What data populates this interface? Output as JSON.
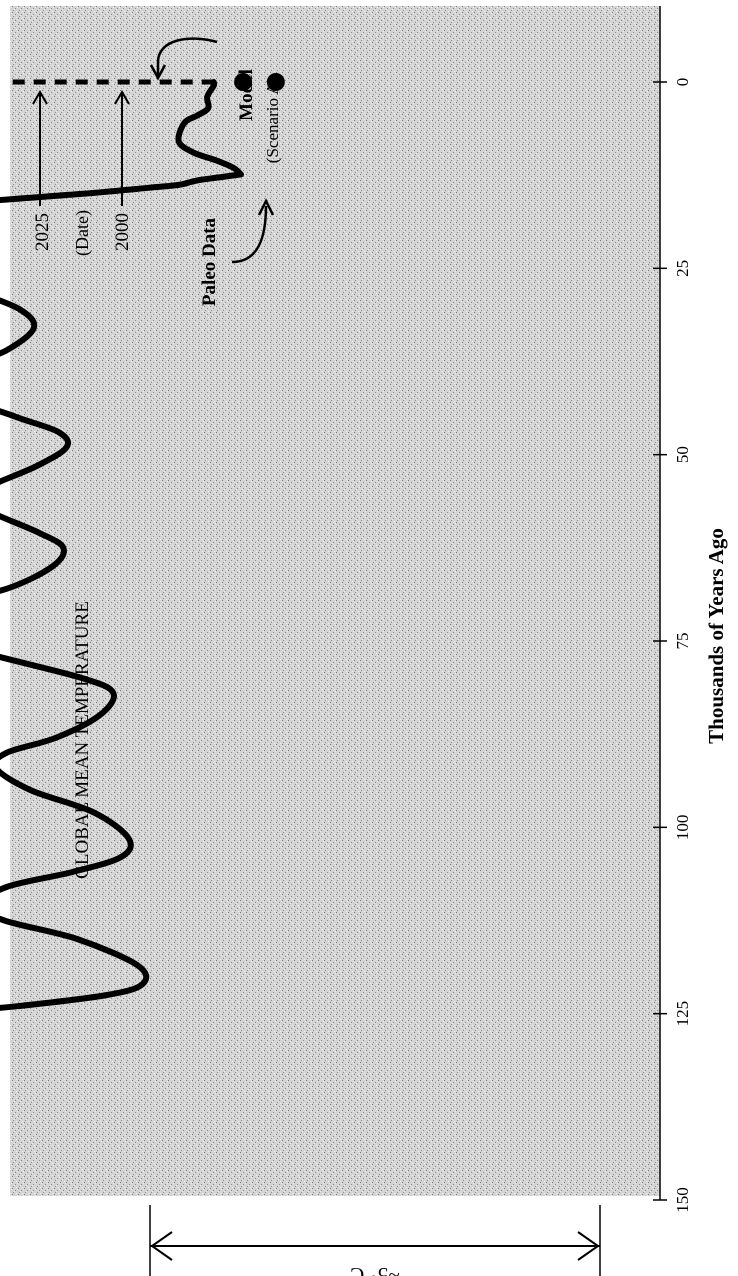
{
  "colors": {
    "background": "#d9d9d9",
    "ink": "#000000",
    "page": "#ffffff"
  },
  "chart_data": {
    "type": "line",
    "title": "GLOBAL MEAN TEMPERATURE",
    "xlabel": "Thousands of Years Ago",
    "ylabel": "",
    "x_ticks": [
      0,
      25,
      50,
      75,
      100,
      125,
      150
    ],
    "x_tick_labels": [
      "0",
      "25",
      "50",
      "75",
      "100",
      "125",
      "150"
    ],
    "xlim": [
      0,
      150
    ],
    "ylim": [
      -4,
      1
    ],
    "x_axis_reversed": true,
    "temperature_scale_label": "~5° C",
    "grid": false,
    "series": [
      {
        "name": "",
        "x": [
          150,
          146,
          142,
          139,
          136,
          132,
          128,
          125.5,
          124,
          122.5,
          121,
          118.5,
          115,
          112.5,
          110.5,
          108,
          106,
          104,
          101.5,
          98,
          95,
          92,
          90,
          88,
          85,
          82,
          80,
          77,
          74.5,
          72,
          70,
          68,
          65,
          62.5,
          60.5,
          58,
          56,
          54,
          51.5,
          49,
          47,
          45,
          42.5,
          40,
          38,
          36,
          33,
          30.5,
          28,
          25,
          22,
          20,
          18,
          17,
          16,
          15,
          14.2,
          13.8,
          13.2,
          12.8,
          12.4
        ],
        "values": [
          -3.68,
          -3.82,
          -3.95,
          -4.0,
          -3.9,
          -3.7,
          -3.4,
          -2.55,
          -1.5,
          -0.68,
          -0.35,
          -0.4,
          -0.95,
          -1.62,
          -1.85,
          -1.6,
          -1.0,
          -0.55,
          -0.48,
          -0.8,
          -1.38,
          -1.7,
          -1.6,
          -1.15,
          -0.75,
          -0.62,
          -0.9,
          -1.7,
          -2.3,
          -2.45,
          -2.2,
          -1.6,
          -1.18,
          -1.08,
          -1.3,
          -1.7,
          -1.95,
          -1.72,
          -1.32,
          -1.05,
          -1.12,
          -1.5,
          -1.95,
          -2.1,
          -1.95,
          -1.6,
          -1.35,
          -1.48,
          -1.9,
          -2.38,
          -2.82,
          -2.95,
          -2.8,
          -2.45,
          -1.8,
          -0.9,
          -0.3,
          -0.02,
          0.15,
          0.35,
          0.55
        ]
      },
      {
        "name": "Model (Scenario A)",
        "x": [
          12.4,
          11.5,
          10.5,
          9.5,
          8.0,
          5.5,
          4.5,
          3.5,
          2.0,
          0.5,
          0.0
        ],
        "values": [
          0.55,
          0.48,
          0.32,
          0.12,
          -0.02,
          0.03,
          0.15,
          0.25,
          0.24,
          0.3,
          0.3
        ]
      }
    ],
    "annotations": {
      "paleo_label": "Paleo Data",
      "model_label": "Model",
      "scenario_label": "(Scenario A)",
      "year_2000": "2000",
      "year_2025": "2025",
      "date_label": "(Date)"
    },
    "points": [
      {
        "label": "2000",
        "x": 0,
        "value": 0.57
      },
      {
        "label": "2025",
        "x": 0,
        "value": 0.87
      }
    ]
  }
}
